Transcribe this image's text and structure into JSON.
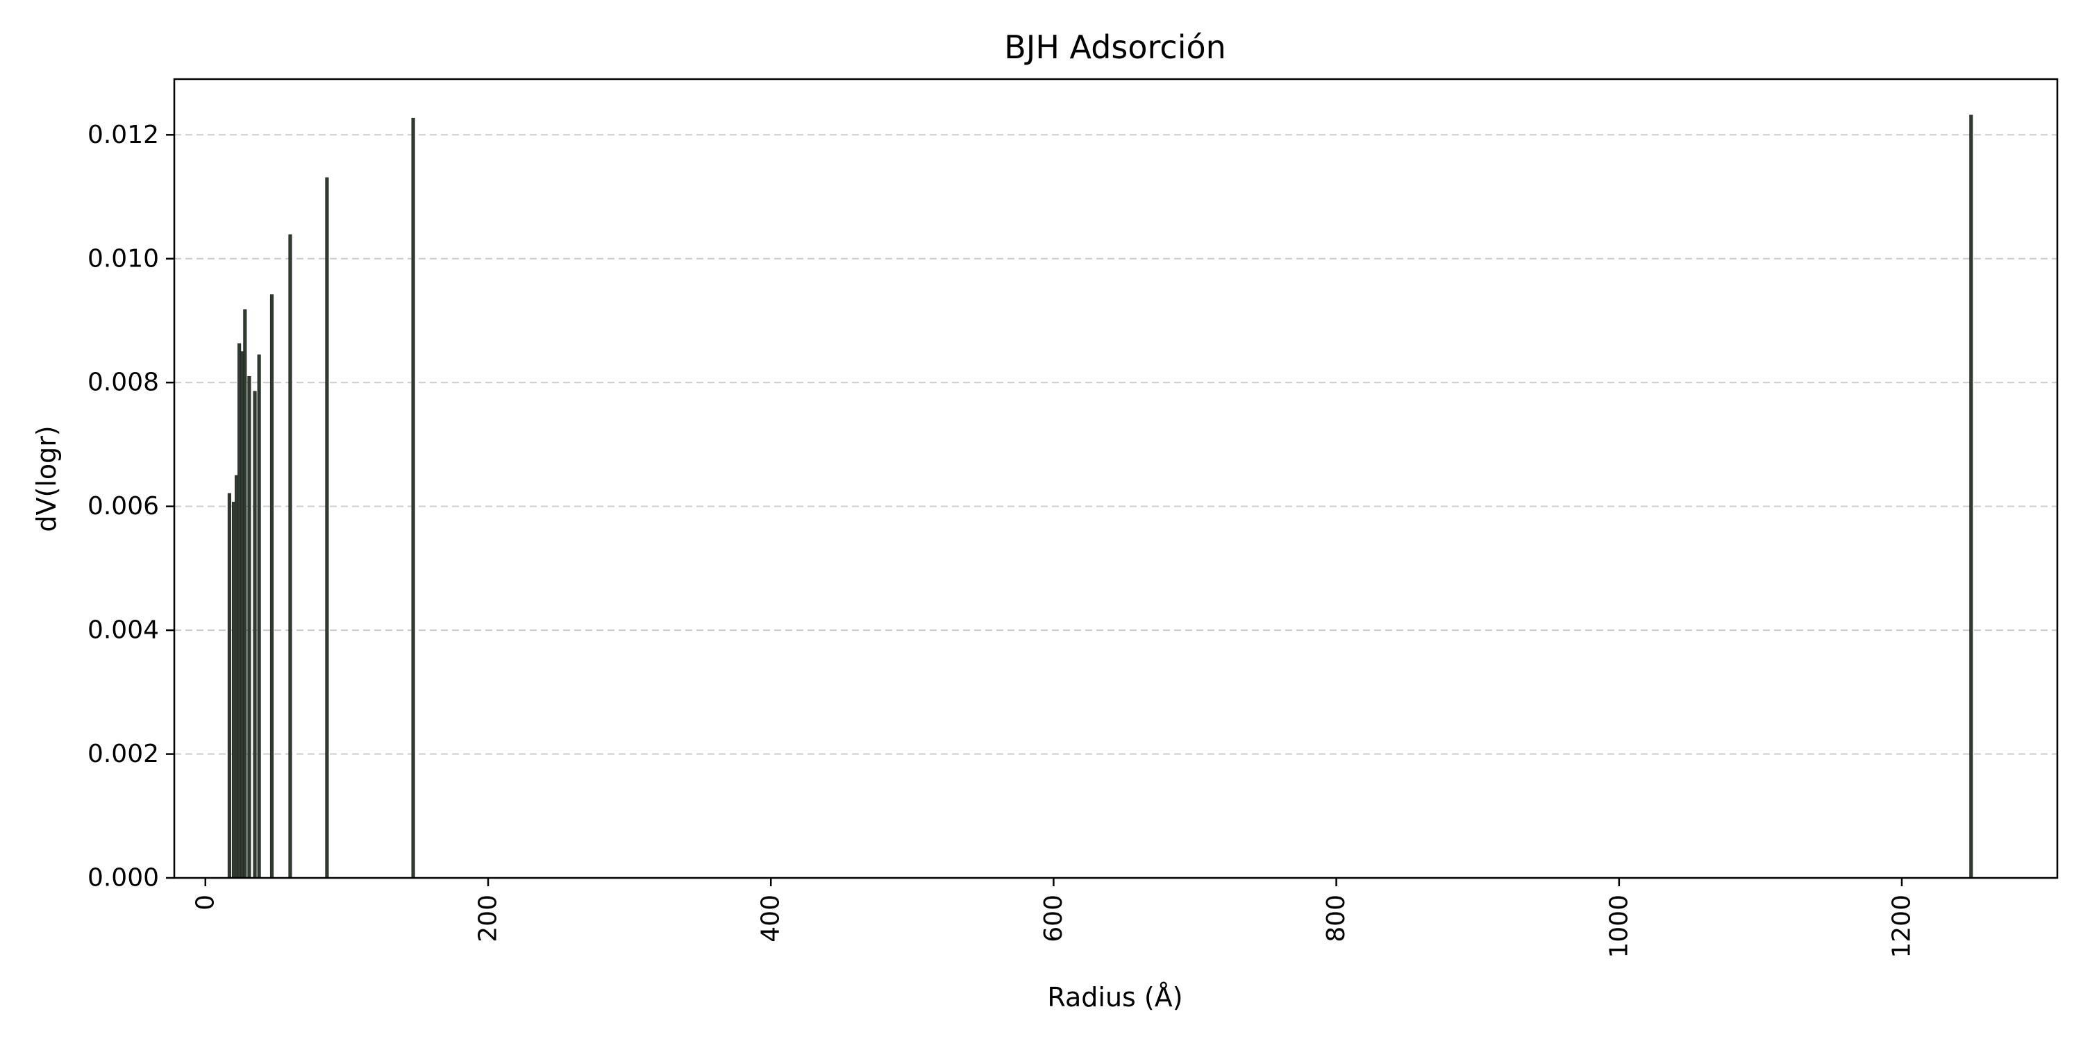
{
  "chart_data": {
    "type": "bar",
    "title": "BJH Adsorción",
    "xlabel": "Radius (Å)",
    "ylabel": "dV(logr)",
    "xlim": [
      -22,
      1310
    ],
    "ylim": [
      0,
      0.0129
    ],
    "xticks": [
      0,
      200,
      400,
      600,
      800,
      1000,
      1200
    ],
    "xtick_labels": [
      "0",
      "200",
      "400",
      "600",
      "800",
      "1000",
      "1200"
    ],
    "xtick_rotation": 90,
    "yticks": [
      0.0,
      0.002,
      0.004,
      0.006,
      0.008,
      0.01,
      0.012
    ],
    "ytick_labels": [
      "0.000",
      "0.002",
      "0.004",
      "0.006",
      "0.008",
      "0.010",
      "0.012"
    ],
    "grid": "y-dashed",
    "legend": "none",
    "bar_color": "#2e3b2e",
    "bar_edge_color": "#222222",
    "grid_color": "#cccccc",
    "x": [
      17,
      20,
      22,
      24,
      26,
      28,
      31,
      35,
      38,
      47,
      60,
      86,
      147,
      1249
    ],
    "values": [
      0.00621,
      0.00607,
      0.0065,
      0.00863,
      0.0085,
      0.00918,
      0.0081,
      0.00786,
      0.00845,
      0.00942,
      0.01039,
      0.01131,
      0.01227,
      0.01232
    ]
  }
}
